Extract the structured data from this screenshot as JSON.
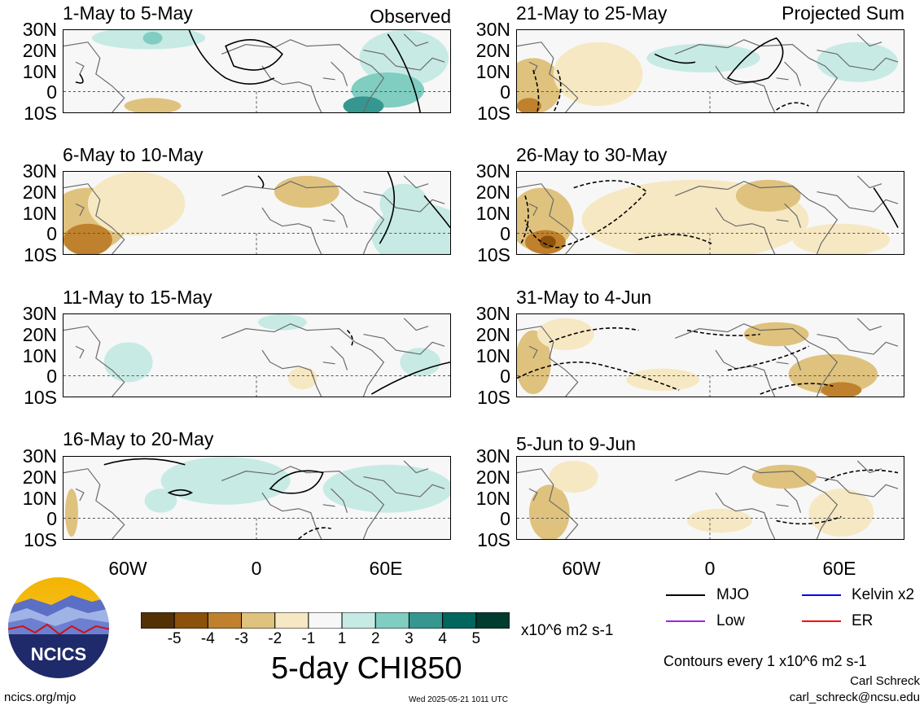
{
  "panels": [
    {
      "title": "1-May to 5-May"
    },
    {
      "title": "6-May to 10-May"
    },
    {
      "title": "11-May to 15-May"
    },
    {
      "title": "16-May to 20-May"
    },
    {
      "title": "21-May to 25-May"
    },
    {
      "title": "26-May to 30-May"
    },
    {
      "title": "31-May to 4-Jun"
    },
    {
      "title": "5-Jun to 9-Jun"
    }
  ],
  "corner_labels": {
    "left": "Observed",
    "right": "Projected Sum"
  },
  "lat_labels": [
    "30N",
    "20N",
    "10N",
    "0",
    "10S"
  ],
  "lon_labels": [
    "60W",
    "0",
    "60E"
  ],
  "colorbar": {
    "ticks": [
      "-5",
      "-4",
      "-3",
      "-2",
      "-1",
      "1",
      "2",
      "3",
      "4",
      "5"
    ],
    "colors": [
      "#543005",
      "#8c510a",
      "#bf812d",
      "#dfc27d",
      "#f6e8c3",
      "#f7f7f7",
      "#c7eae5",
      "#80cdc1",
      "#35978f",
      "#01665e",
      "#003c30"
    ],
    "units": "x10^6 m2 s-1",
    "title": "5-day CHI850"
  },
  "legend": {
    "mjo": "MJO",
    "kelvin": "Kelvin x2",
    "low": "Low",
    "er": "ER",
    "colors": {
      "mjo": "#000000",
      "kelvin": "#0000ff",
      "low": "#a020f0",
      "er": "#ff0000"
    }
  },
  "contour_note": "Contours every 1 x10^6 m2 s-1",
  "author": "Carl Schreck",
  "email": "carl_schreck@ncsu.edu",
  "site": "ncics.org/mjo",
  "timestamp": "Wed 2025-05-21 1011 UTC",
  "logo_text": "NCICS"
}
